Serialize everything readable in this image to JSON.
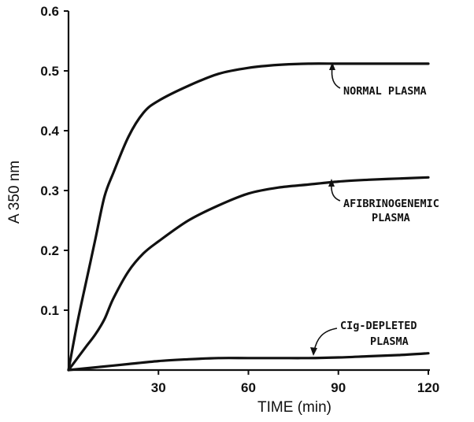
{
  "chart_data": {
    "type": "line",
    "xlabel": "TIME (min)",
    "ylabel": "A 350 nm",
    "xlim": [
      0,
      120
    ],
    "ylim": [
      0,
      0.6
    ],
    "x_ticks": [
      {
        "value": 30,
        "label": "30"
      },
      {
        "value": 60,
        "label": "60"
      },
      {
        "value": 90,
        "label": "90"
      },
      {
        "value": 120,
        "label": "120"
      }
    ],
    "y_ticks": [
      {
        "value": 0.1,
        "label": "0.1"
      },
      {
        "value": 0.2,
        "label": "0.2"
      },
      {
        "value": 0.3,
        "label": "0.3"
      },
      {
        "value": 0.4,
        "label": "0.4"
      },
      {
        "value": 0.5,
        "label": "0.5"
      },
      {
        "value": 0.6,
        "label": "0.6"
      }
    ],
    "grid": false,
    "series": [
      {
        "x": [
          0,
          3,
          6,
          9,
          12,
          15,
          20,
          25,
          30,
          40,
          50,
          60,
          70,
          80,
          90,
          100,
          110,
          120
        ],
        "y": [
          0,
          0.08,
          0.15,
          0.22,
          0.29,
          0.33,
          0.39,
          0.43,
          0.45,
          0.475,
          0.495,
          0.505,
          0.51,
          0.512,
          0.512,
          0.512,
          0.512,
          0.512
        ],
        "annotation": [
          "NORMAL PLASMA"
        ]
      },
      {
        "x": [
          0,
          3,
          6,
          9,
          12,
          15,
          20,
          25,
          30,
          40,
          50,
          60,
          70,
          80,
          90,
          100,
          110,
          120
        ],
        "y": [
          0,
          0.02,
          0.04,
          0.06,
          0.085,
          0.12,
          0.165,
          0.195,
          0.215,
          0.25,
          0.275,
          0.295,
          0.305,
          0.31,
          0.315,
          0.318,
          0.32,
          0.322
        ],
        "annotation": [
          "AFIBRINOGENEMIC",
          "PLASMA"
        ]
      },
      {
        "x": [
          0,
          10,
          20,
          30,
          40,
          50,
          60,
          70,
          80,
          90,
          100,
          110,
          120
        ],
        "y": [
          0,
          0.005,
          0.01,
          0.015,
          0.018,
          0.02,
          0.02,
          0.02,
          0.02,
          0.021,
          0.023,
          0.025,
          0.028
        ],
        "annotation": [
          "CIg-DEPLETED",
          "PLASMA"
        ]
      }
    ]
  }
}
